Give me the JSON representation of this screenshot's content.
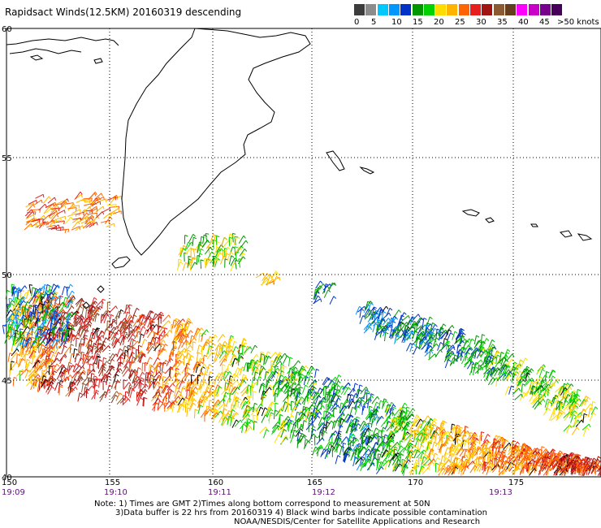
{
  "title": "Rapidsact Winds(12.5KM) 20160319 descending",
  "colorbar": {
    "colors": [
      "#3c3c3c",
      "#8c8c8c",
      "#00c8ff",
      "#0096ff",
      "#0032c8",
      "#009600",
      "#00d200",
      "#ffdc00",
      "#ffb400",
      "#ff6400",
      "#e61e1e",
      "#a01414",
      "#8c5a32",
      "#643c1e",
      "#ff00ff",
      "#c800c8",
      "#78008c",
      "#46005a"
    ],
    "labels": [
      "0",
      "5",
      "10",
      "15",
      "20",
      "25",
      "30",
      "35",
      "40",
      "45",
      ">50 knots"
    ]
  },
  "map": {
    "lat_labels": [
      "60",
      "55",
      "50",
      "45",
      "40"
    ],
    "lon_labels": [
      "150",
      "155",
      "160",
      "165",
      "170",
      "175"
    ],
    "time_labels": [
      "19:09",
      "19:10",
      "19:11",
      "19:12",
      "19:13"
    ]
  },
  "notes": [
    "Note: 1) Times are GMT 2)Times along bottom correspond to measurement at 50N",
    "3)Data buffer is 22 hrs from 20160319 4) Black wind barbs indicate possible contamination",
    "NOAA/NESDIS/Center for Satellite Applications and Research"
  ]
}
